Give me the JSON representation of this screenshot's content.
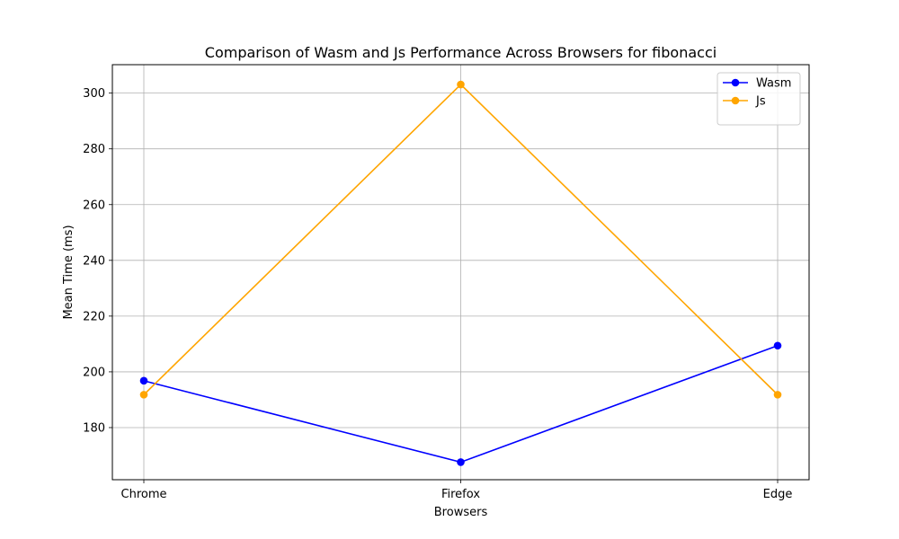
{
  "chart_data": {
    "type": "line",
    "title": "Comparison of Wasm and Js Performance Across Browsers for fibonacci",
    "xlabel": "Browsers",
    "ylabel": "Mean Time (ms)",
    "categories": [
      "Chrome",
      "Firefox",
      "Edge"
    ],
    "yticks": [
      180,
      200,
      220,
      240,
      260,
      280,
      300
    ],
    "ylim": [
      161.3,
      310.2
    ],
    "grid": true,
    "legend_position": "top-right",
    "series": [
      {
        "name": "Wasm",
        "color": "#0000ff",
        "values": [
          196.8,
          167.6,
          209.4
        ]
      },
      {
        "name": "Js",
        "color": "#ffa500",
        "values": [
          191.8,
          303.1,
          191.8
        ]
      }
    ]
  }
}
